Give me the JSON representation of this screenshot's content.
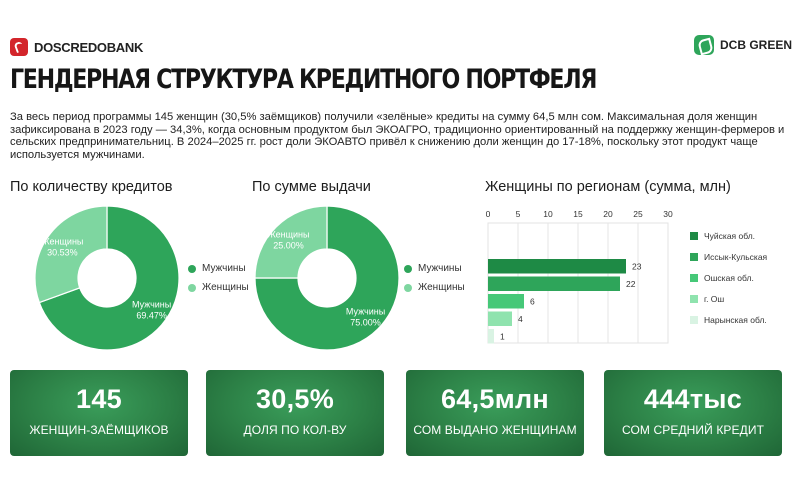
{
  "brand": {
    "left": "DOSCREDOBANK",
    "right": "DCB GREEN"
  },
  "title": "ГЕНДЕРНАЯ СТРУКТУРА КРЕДИТНОГО ПОРТФЕЛЯ",
  "intro": "За весь период программы 145 женщин (30,5% заёмщиков) получили «зелёные» кредиты на сумму 64,5 млн сом. Максимальная доля женщин зафиксирована в 2023 году — 34,3%, когда основным продуктом был ЭКОАГРО, традиционно ориентированный на поддержку женщин-фермеров и сельских предпринимательниц. В 2024–2025 гг. рост доли ЭКОАВТО привёл к снижению доли женщин до 17-18%, поскольку этот продукт чаще используется мужчинами.",
  "colors": {
    "men": "#2ea55a",
    "women": "#7ed6a0",
    "dark": "#1f6636"
  },
  "chart_data": [
    {
      "type": "pie",
      "title": "По количеству кредитов",
      "slices": [
        {
          "name": "Мужчины",
          "value": 69.47,
          "label": "69.47%",
          "color": "#2ea55a"
        },
        {
          "name": "Женщины",
          "value": 30.53,
          "label": "30.53%",
          "color": "#7ed6a0"
        }
      ]
    },
    {
      "type": "pie",
      "title": "По сумме выдачи",
      "slices": [
        {
          "name": "Мужчины",
          "value": 75.0,
          "label": "75.00%",
          "color": "#2ea55a"
        },
        {
          "name": "Женщины",
          "value": 25.0,
          "label": "25.00%",
          "color": "#7ed6a0"
        }
      ]
    },
    {
      "type": "bar",
      "orientation": "horizontal",
      "title": "Женщины по регионам (сумма, млн)",
      "categories": [
        "Чуйская обл.",
        "Иссык-Кульская",
        "Ошская обл.",
        "г. Ош",
        "Нарынская обл."
      ],
      "values": [
        23,
        22,
        6,
        4,
        1
      ],
      "colors": [
        "#1e8a45",
        "#2ea55a",
        "#46c878",
        "#8fe3ae",
        "#d9f3e3"
      ],
      "xticks": [
        0,
        5,
        10,
        15,
        20,
        25,
        30
      ],
      "xlim": [
        0,
        30
      ],
      "grid": true,
      "legend": "right"
    }
  ],
  "stats": [
    {
      "value": "145",
      "label": "ЖЕНЩИН-ЗАЁМЩИКОВ"
    },
    {
      "value": "30,5%",
      "label": "ДОЛЯ ПО КОЛ-ВУ"
    },
    {
      "value": "64,5млн",
      "label": "СОМ ВЫДАНО ЖЕНЩИНАМ"
    },
    {
      "value": "444тыс",
      "label": "СОМ СРЕДНИЙ КРЕДИТ"
    }
  ]
}
